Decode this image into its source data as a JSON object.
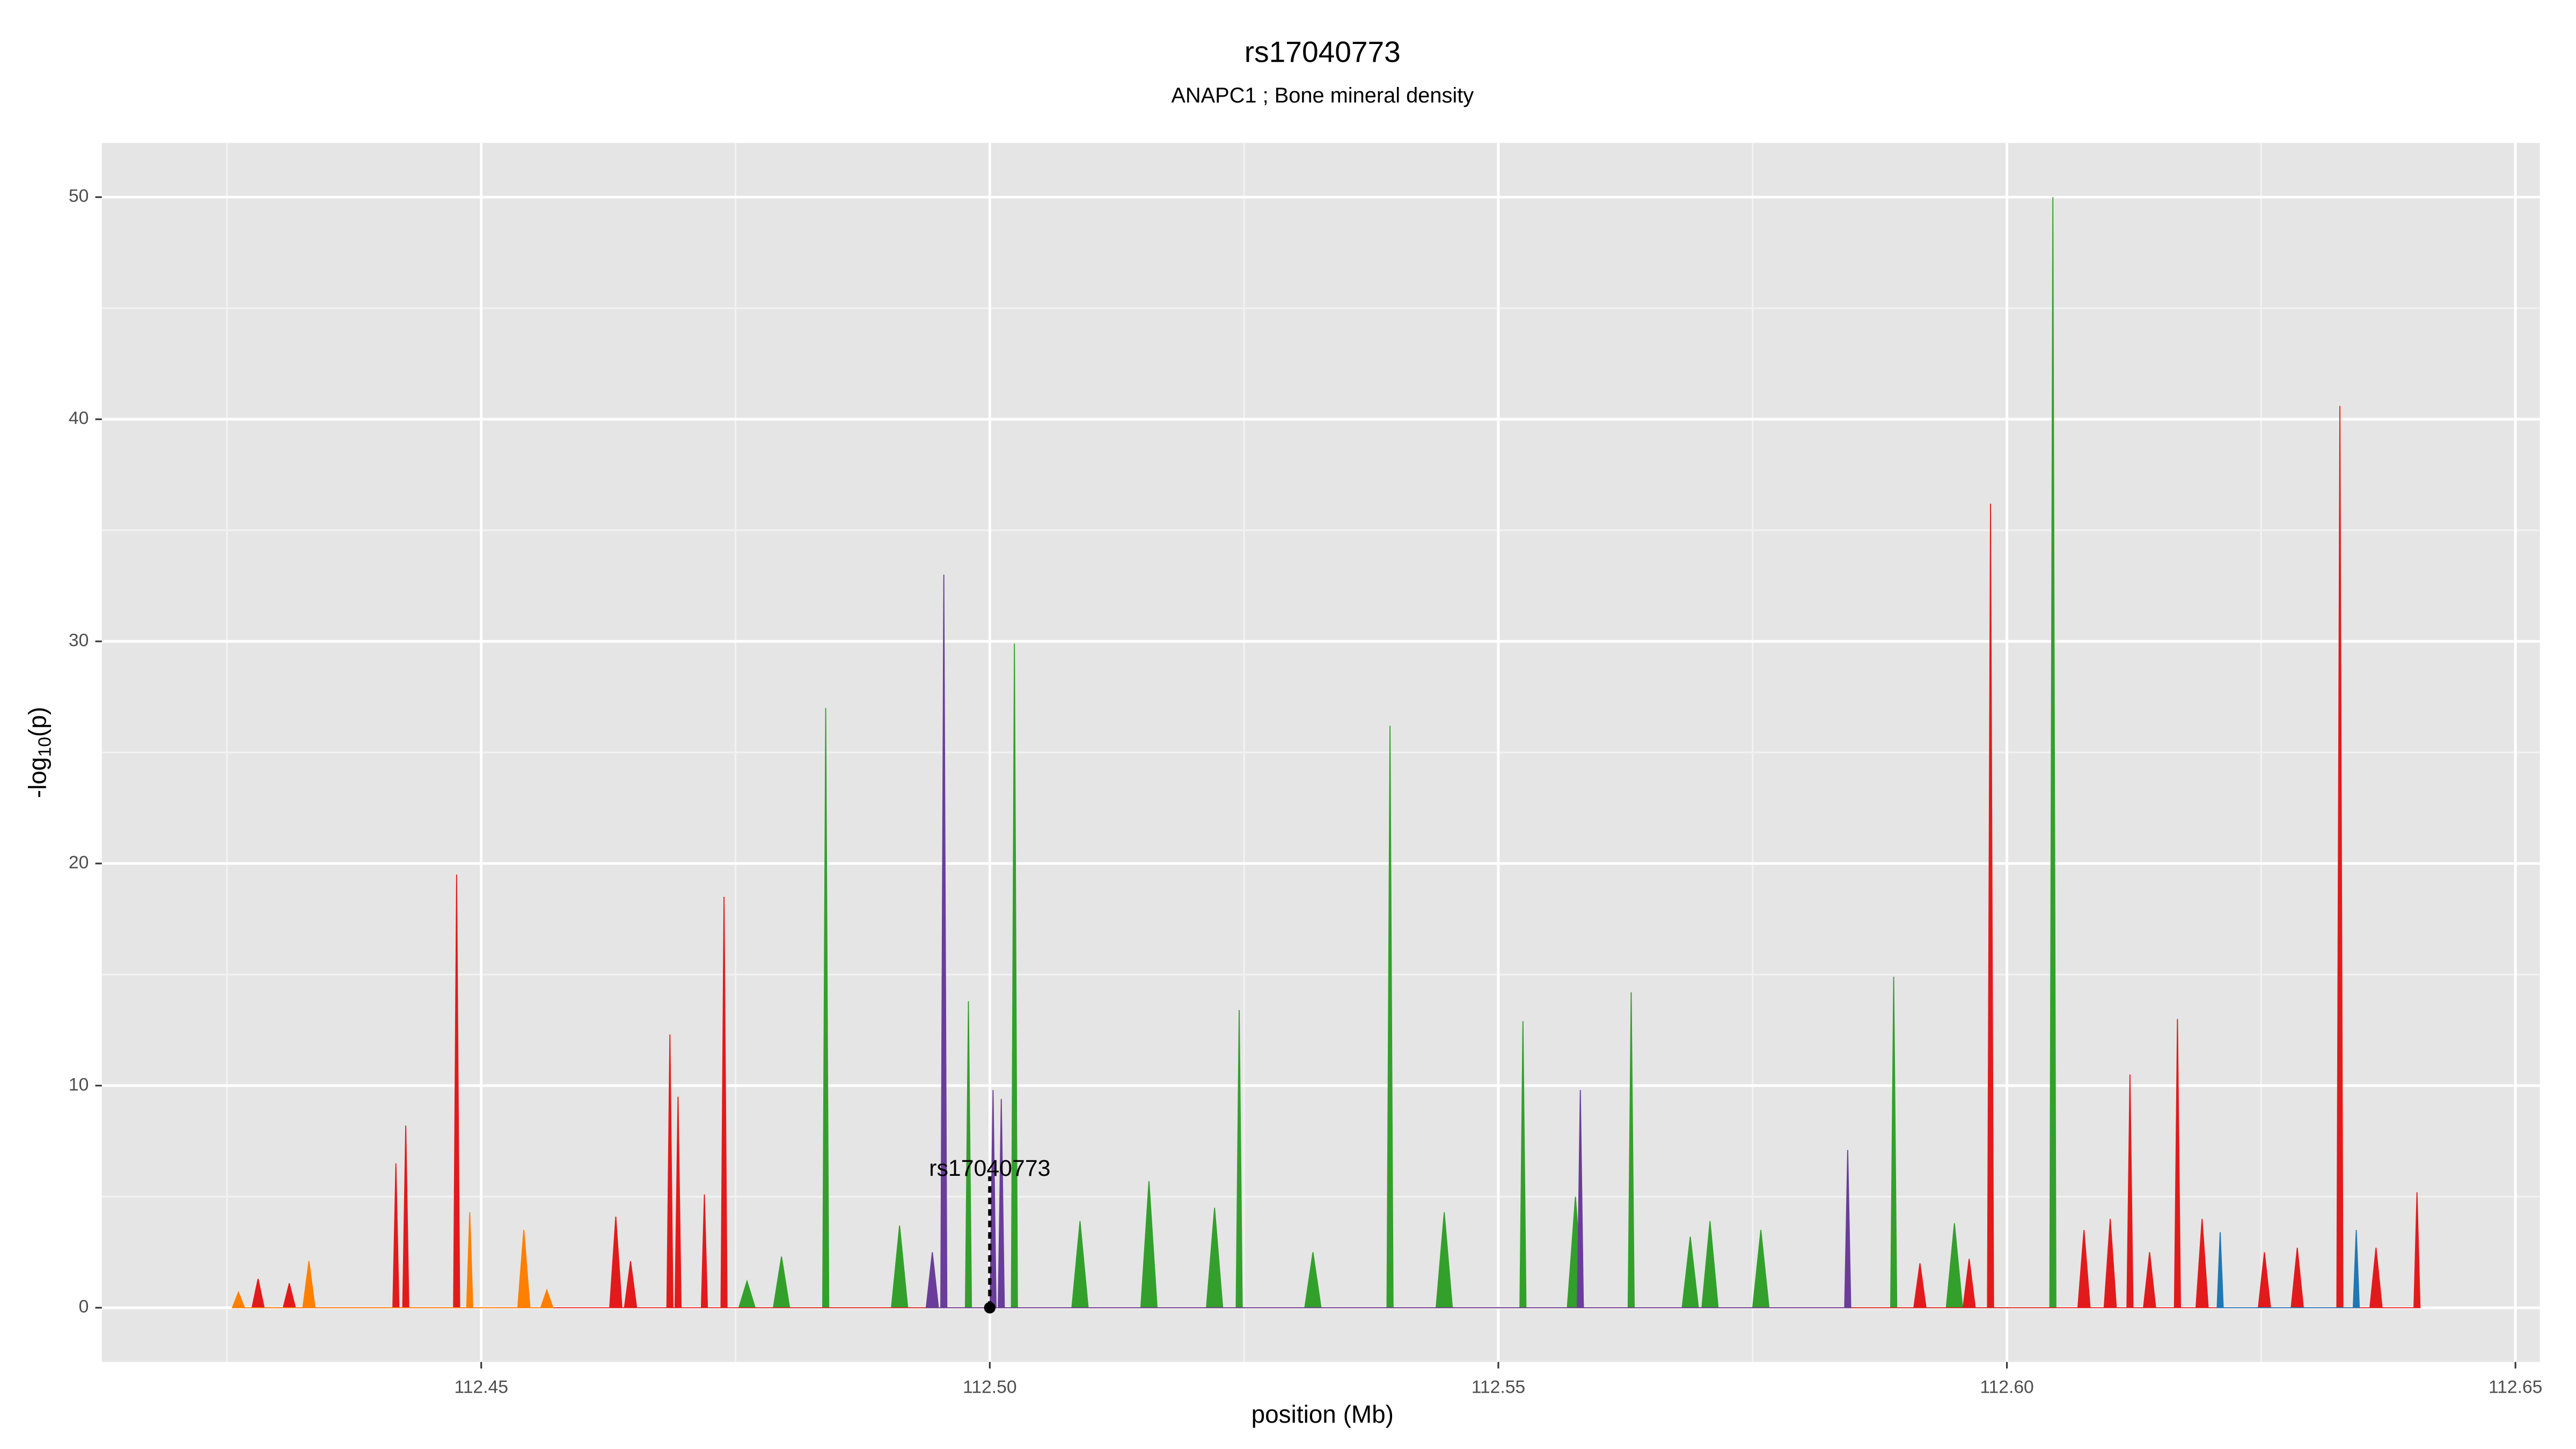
{
  "chart_data": {
    "type": "area",
    "title": "rs17040773",
    "subtitle": "ANAPC1 ; Bone mineral density",
    "xlabel": "position (Mb)",
    "ylabel": [
      "-log",
      "10",
      "(p)"
    ],
    "xlim": [
      112.4127,
      112.6524
    ],
    "ylim": [
      -2.44,
      52.44
    ],
    "xticks": [
      112.45,
      {
        "value": 112.5,
        "label": "112.50"
      },
      112.55,
      {
        "value": 112.6,
        "label": "112.60"
      },
      112.65
    ],
    "yticks": [
      0,
      10,
      20,
      30,
      40,
      50
    ],
    "minor_xticks": [
      112.425,
      112.475,
      112.525,
      112.575,
      112.625
    ],
    "minor_yticks": [
      5,
      15,
      25,
      35,
      45
    ],
    "grid": true,
    "series": [
      {
        "color": "#33a02c",
        "x": [
          112.47533,
          112.47613,
          112.47693,
          112.47872,
          112.47952,
          112.48032,
          112.48357,
          112.48387,
          112.48417,
          112.49033,
          112.49113,
          112.49193,
          112.4976,
          112.4979,
          112.4982,
          112.50212,
          112.50242,
          112.50272,
          112.50807,
          112.50887,
          112.50967,
          112.51485,
          112.51565,
          112.51645,
          112.5213,
          112.5221,
          112.5229,
          112.52422,
          112.52452,
          112.52482,
          112.53097,
          112.53177,
          112.53257,
          112.53905,
          112.53935,
          112.53965,
          112.54388,
          112.54468,
          112.54548,
          112.55212,
          112.55242,
          112.55272,
          112.55678,
          112.55758,
          112.55838,
          112.56276,
          112.56306,
          112.56336,
          112.56807,
          112.56887,
          112.56967,
          112.57001,
          112.57081,
          112.57161,
          112.57501,
          112.57581,
          112.57661,
          112.58857,
          112.58887,
          112.58917,
          112.59404,
          112.59484,
          112.59564,
          112.60422,
          112.60452,
          112.60482
        ],
        "values": [
          0,
          1.2,
          0,
          0,
          2.3,
          0,
          0,
          27,
          0,
          0,
          3.7,
          0,
          0,
          13.8,
          0,
          0,
          29.9,
          0,
          0,
          3.9,
          0,
          0,
          5.7,
          0,
          0,
          4.5,
          0,
          0,
          13.4,
          0,
          0,
          2.5,
          0,
          0,
          26.2,
          0,
          0,
          4.3,
          0,
          0,
          12.9,
          0,
          0,
          5,
          0,
          0,
          14.2,
          0,
          0,
          3.2,
          0,
          0,
          3.9,
          0,
          0,
          3.5,
          0,
          0,
          14.9,
          0,
          0,
          3.8,
          0,
          0,
          50,
          0
        ]
      },
      {
        "color": "#e31a1c",
        "x": [
          112.42746,
          112.42806,
          112.42866,
          112.43053,
          112.43113,
          112.43173,
          112.44131,
          112.44161,
          112.44191,
          112.44228,
          112.44258,
          112.44288,
          112.44728,
          112.44758,
          112.44788,
          112.46263,
          112.46323,
          112.46383,
          112.46408,
          112.46468,
          112.46528,
          112.46825,
          112.46855,
          112.46885,
          112.46905,
          112.46935,
          112.46965,
          112.47164,
          112.47194,
          112.47224,
          112.47357,
          112.47387,
          112.47417,
          112.59085,
          112.59145,
          112.59205,
          112.59569,
          112.59629,
          112.59689,
          112.59809,
          112.59839,
          112.59869,
          112.60698,
          112.60758,
          112.60818,
          112.60956,
          112.61016,
          112.61076,
          112.6118,
          112.6121,
          112.6124,
          112.61343,
          112.61403,
          112.61463,
          112.61647,
          112.61677,
          112.61707,
          112.61859,
          112.61919,
          112.61979,
          112.62472,
          112.62532,
          112.62592,
          112.62795,
          112.62855,
          112.62915,
          112.63244,
          112.63274,
          112.63304,
          112.63569,
          112.63629,
          112.63689,
          112.64002,
          112.64032,
          112.64062
        ],
        "values": [
          0,
          1.3,
          0,
          0,
          1.1,
          0,
          0,
          6.5,
          0,
          0,
          8.2,
          0,
          0,
          19.5,
          0,
          0,
          4.1,
          0,
          0,
          2.1,
          0,
          0,
          12.3,
          0,
          0,
          9.5,
          0,
          0,
          5.1,
          0,
          0,
          18.5,
          0,
          0,
          2,
          0,
          0,
          2.2,
          0,
          0,
          36.2,
          0,
          0,
          3.5,
          0,
          0,
          4,
          0,
          0,
          10.5,
          0,
          0,
          2.5,
          0,
          0,
          13,
          0,
          0,
          4,
          0,
          0,
          2.5,
          0,
          0,
          2.7,
          0,
          0,
          40.6,
          0,
          0,
          2.7,
          0,
          0,
          5.2,
          0
        ]
      },
      {
        "color": "#ff7f00",
        "x": [
          112.42553,
          112.42613,
          112.42673,
          112.43246,
          112.43306,
          112.43366,
          112.44857,
          112.44887,
          112.44917,
          112.45359,
          112.45419,
          112.45479,
          112.45585,
          112.45645,
          112.45705
        ],
        "values": [
          0,
          0.7,
          0,
          0,
          2.1,
          0,
          0,
          4.3,
          0,
          0,
          3.5,
          0,
          0,
          0.8,
          0
        ]
      },
      {
        "color": "#6a3d9a",
        "x": [
          112.49375,
          112.49435,
          112.49495,
          112.49518,
          112.49548,
          112.49578,
          112.50002,
          112.50032,
          112.50062,
          112.50083,
          112.50113,
          112.50143,
          112.55776,
          112.55806,
          112.55836,
          112.58405,
          112.58435,
          112.58465
        ],
        "values": [
          0,
          2.5,
          0,
          0,
          33,
          0,
          0,
          9.8,
          0,
          0,
          9.4,
          0,
          0,
          9.8,
          0,
          0,
          7.1,
          0
        ]
      },
      {
        "color": "#1f78b4",
        "x": [
          112.62067,
          112.62097,
          112.62127,
          112.63405,
          112.63435,
          112.63465
        ],
        "values": [
          0,
          3.4,
          0,
          0,
          3.5,
          0
        ]
      }
    ],
    "annotation": {
      "text": "rs17040773",
      "x": 112.5,
      "y": 0
    }
  }
}
